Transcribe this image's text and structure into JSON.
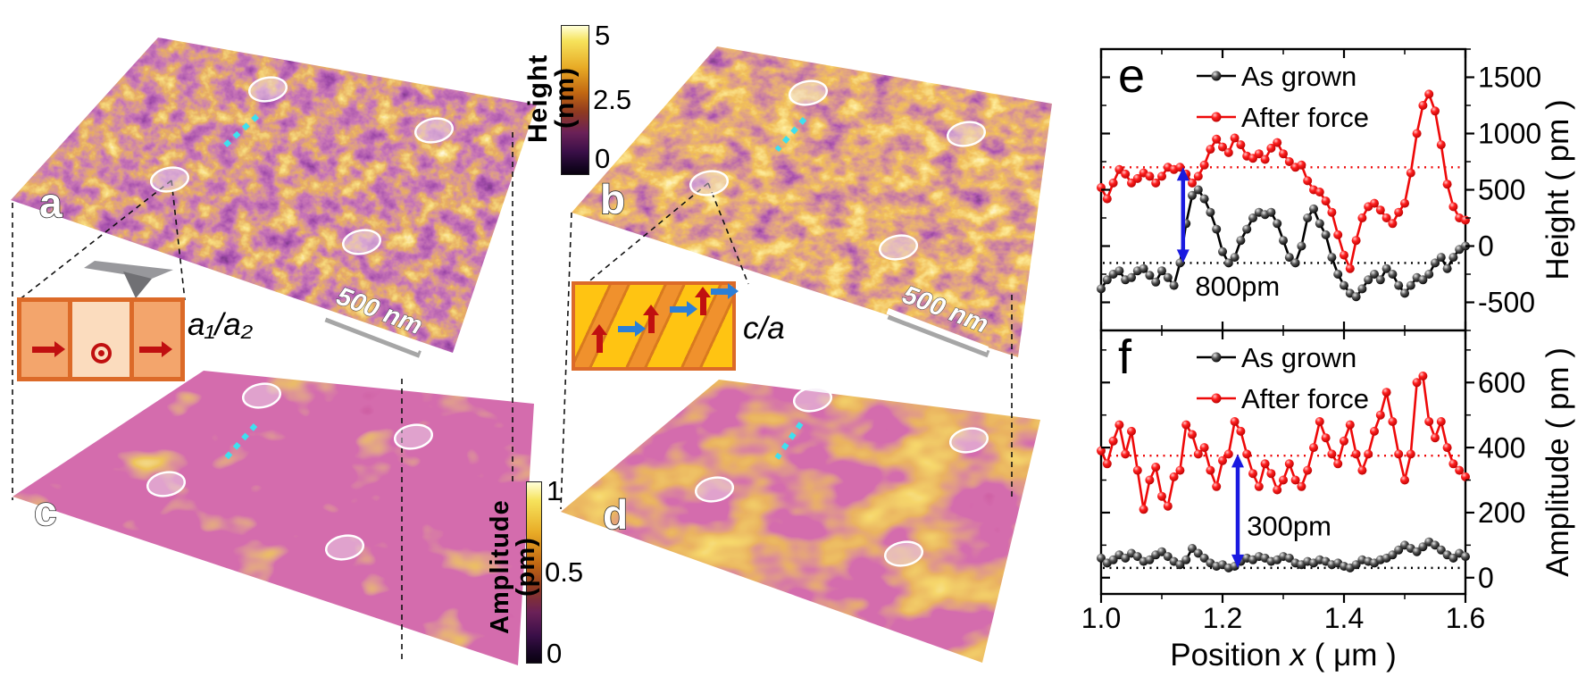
{
  "panels3d": {
    "a": {
      "letter": "a",
      "scale_bar": "500 nm"
    },
    "b": {
      "letter": "b",
      "scale_bar": "500 nm"
    },
    "c": {
      "letter": "c"
    },
    "d": {
      "letter": "d"
    }
  },
  "colorbars": {
    "height": {
      "title": "Height (nm)",
      "ticks": [
        "5",
        "2.5",
        "0"
      ]
    },
    "amplitude": {
      "title": "Amplitude (pm)",
      "ticks": [
        "1",
        "0.5",
        "0"
      ]
    }
  },
  "insets": {
    "a": {
      "label": "a₁/a₂"
    },
    "b": {
      "label": "c/a"
    }
  },
  "chart_data": [
    {
      "id": "e",
      "type": "line",
      "panel_letter": "e",
      "ylabel": "Height ( pm )",
      "xlim": [
        1.0,
        1.6
      ],
      "ylim": [
        -750,
        1750
      ],
      "xticks": [
        1.0,
        1.2,
        1.4,
        1.6
      ],
      "xtick_minor": 0.1,
      "xtick_labels": [
        "1.0",
        "1.2",
        "1.4",
        "1.6"
      ],
      "show_x_tick_labels": false,
      "yticks": [
        -500,
        0,
        500,
        1000,
        1500
      ],
      "ytick_minor": 250,
      "ytick_labels": [
        "-500",
        "0",
        "500",
        "1000",
        "1500"
      ],
      "legend": [
        {
          "label": "As grown",
          "marker": "black"
        },
        {
          "label": "After force",
          "marker": "red"
        }
      ],
      "ref_lines": [
        {
          "y": 700,
          "color": "#ee0909"
        },
        {
          "y": -150,
          "color": "#000000"
        }
      ],
      "arrow": {
        "x": 1.135,
        "y1": -150,
        "y2": 700,
        "color": "#1a1ae0"
      },
      "annotation": {
        "text": "800pm",
        "x": 1.155,
        "y": -440,
        "anchor": "start"
      },
      "x_start": 1.0,
      "x_step": 0.01,
      "series": [
        {
          "name": "As grown",
          "color": "#000000",
          "marker": "black",
          "values": [
            -380,
            -300,
            -250,
            -220,
            -300,
            -280,
            -220,
            -200,
            -260,
            -320,
            -220,
            -280,
            -350,
            -150,
            200,
            450,
            500,
            420,
            300,
            150,
            -50,
            -150,
            -100,
            50,
            150,
            250,
            300,
            280,
            300,
            200,
            50,
            -100,
            -150,
            0,
            250,
            330,
            200,
            100,
            -100,
            -250,
            -350,
            -420,
            -450,
            -380,
            -300,
            -250,
            -300,
            -200,
            -250,
            -350,
            -420,
            -350,
            -280,
            -300,
            -250,
            -150,
            -100,
            -200,
            -100,
            -30,
            0
          ]
        },
        {
          "name": "After force",
          "color": "#ee0909",
          "marker": "red",
          "values": [
            520,
            420,
            560,
            680,
            640,
            560,
            600,
            650,
            620,
            560,
            620,
            700,
            680,
            700,
            640,
            560,
            620,
            720,
            860,
            950,
            880,
            830,
            960,
            900,
            800,
            780,
            820,
            770,
            870,
            920,
            820,
            750,
            700,
            720,
            580,
            500,
            480,
            400,
            300,
            100,
            -80,
            -200,
            50,
            250,
            350,
            380,
            320,
            250,
            200,
            300,
            380,
            650,
            1000,
            1250,
            1350,
            1200,
            900,
            550,
            350,
            250,
            230
          ]
        }
      ]
    },
    {
      "id": "f",
      "type": "line",
      "panel_letter": "f",
      "ylabel": "Amplitude ( pm )",
      "xlabel_parts": [
        {
          "t": "Position ",
          "i": false
        },
        {
          "t": "x",
          "i": true
        },
        {
          "t": "  ( μm )",
          "i": false
        }
      ],
      "xlim": [
        1.0,
        1.6
      ],
      "ylim": [
        -50,
        760
      ],
      "xticks": [
        1.0,
        1.2,
        1.4,
        1.6
      ],
      "xtick_minor": 0.1,
      "xtick_labels": [
        "1.0",
        "1.2",
        "1.4",
        "1.6"
      ],
      "show_x_tick_labels": true,
      "yticks": [
        0,
        200,
        400,
        600
      ],
      "ytick_minor": 100,
      "ytick_labels": [
        "0",
        "200",
        "400",
        "600"
      ],
      "legend": [
        {
          "label": "As grown",
          "marker": "black"
        },
        {
          "label": "After force",
          "marker": "red"
        }
      ],
      "ref_lines": [
        {
          "y": 375,
          "color": "#ee0909"
        },
        {
          "y": 30,
          "color": "#000000"
        }
      ],
      "arrow": {
        "x": 1.225,
        "y1": 30,
        "y2": 380,
        "color": "#1a1ae0"
      },
      "annotation": {
        "text": "300pm",
        "x": 1.24,
        "y": 130,
        "anchor": "start"
      },
      "x_start": 1.0,
      "x_step": 0.01,
      "series": [
        {
          "name": "As grown",
          "color": "#000000",
          "marker": "black",
          "values": [
            60,
            45,
            55,
            70,
            60,
            75,
            65,
            50,
            55,
            70,
            80,
            65,
            50,
            40,
            55,
            90,
            75,
            60,
            45,
            35,
            40,
            30,
            35,
            50,
            60,
            55,
            65,
            60,
            50,
            55,
            65,
            60,
            45,
            40,
            50,
            45,
            55,
            50,
            40,
            45,
            35,
            30,
            40,
            55,
            50,
            45,
            55,
            60,
            70,
            85,
            100,
            90,
            80,
            95,
            110,
            100,
            85,
            70,
            60,
            75,
            65
          ]
        },
        {
          "name": "After force",
          "color": "#ee0909",
          "marker": "red",
          "values": [
            390,
            350,
            420,
            470,
            380,
            450,
            330,
            210,
            300,
            340,
            250,
            220,
            310,
            330,
            470,
            440,
            380,
            400,
            330,
            280,
            360,
            380,
            480,
            450,
            380,
            320,
            280,
            350,
            320,
            270,
            300,
            350,
            300,
            280,
            330,
            400,
            480,
            430,
            380,
            350,
            420,
            470,
            380,
            330,
            380,
            450,
            500,
            570,
            480,
            380,
            300,
            380,
            600,
            620,
            480,
            430,
            480,
            400,
            350,
            330,
            310
          ]
        }
      ]
    }
  ]
}
